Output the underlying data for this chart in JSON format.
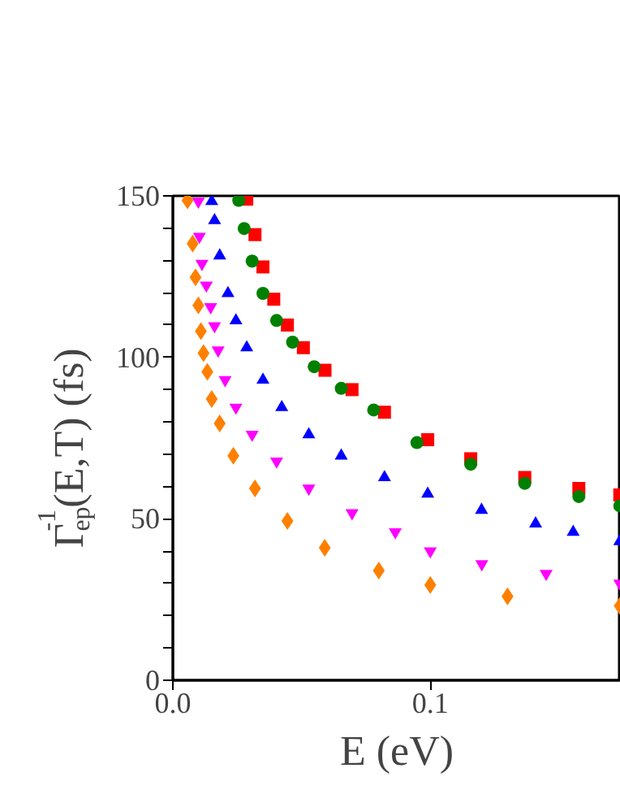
{
  "chart_data": {
    "type": "scatter",
    "xlabel": "E (eV)",
    "ylabel": "Γ$_{ep}$$^{-1}$(E,T) (fs)",
    "xlim": [
      0,
      0.174
    ],
    "ylim": [
      0,
      150
    ],
    "xticks": [
      {
        "value": 0,
        "label": "0.0"
      },
      0.1
    ],
    "yticks": [
      0,
      {
        "value": 10,
        "label": null
      },
      {
        "value": 20,
        "label": null
      },
      {
        "value": 30,
        "label": null
      },
      {
        "value": 40,
        "label": null
      },
      50,
      {
        "value": 60,
        "label": null
      },
      {
        "value": 70,
        "label": null
      },
      {
        "value": 80,
        "label": null
      },
      {
        "value": 90,
        "label": null
      },
      100,
      {
        "value": 110,
        "label": null
      },
      {
        "value": 120,
        "label": null
      },
      {
        "value": 130,
        "label": null
      },
      {
        "value": 140,
        "label": null
      },
      150
    ],
    "grid": false,
    "series": [
      {
        "color": "#ff0000",
        "marker": "square",
        "x": [
          0.0287,
          0.0319,
          0.035,
          0.0392,
          0.0445,
          0.0507,
          0.0591,
          0.0696,
          0.0822,
          0.099,
          0.1157,
          0.1367,
          0.1577,
          0.1736
        ],
        "values": [
          149,
          138,
          128,
          118,
          110,
          103,
          96,
          90,
          83,
          74.5,
          68.6,
          62.8,
          59.4,
          57.4
        ]
      },
      {
        "color": "#008000",
        "marker": "circle",
        "x": [
          0.0256,
          0.0277,
          0.0308,
          0.035,
          0.0403,
          0.0465,
          0.0549,
          0.0654,
          0.078,
          0.0948,
          0.1157,
          0.1367,
          0.1577,
          0.1736
        ],
        "values": [
          148.6,
          139.9,
          129.8,
          119.8,
          111.4,
          104.7,
          97.1,
          90.4,
          83.7,
          73.6,
          66.9,
          61.0,
          56.9,
          54.0
        ]
      },
      {
        "color": "#0000ff",
        "marker": "triangle",
        "x": [
          0.0151,
          0.0162,
          0.0182,
          0.0214,
          0.0245,
          0.0287,
          0.035,
          0.0423,
          0.0528,
          0.0654,
          0.0822,
          0.099,
          0.1199,
          0.1409,
          0.1555,
          0.1736
        ],
        "values": [
          148.3,
          142.4,
          131.5,
          119.8,
          111.4,
          103.0,
          93.0,
          84.5,
          76.1,
          69.5,
          62.8,
          57.7,
          52.7,
          48.5,
          45.9,
          43
        ]
      },
      {
        "color": "#ff00ff",
        "marker": "triangle",
        "x": [
          0.0099,
          0.0103,
          0.0113,
          0.013,
          0.0147,
          0.0162,
          0.0176,
          0.0203,
          0.0245,
          0.0308,
          0.0403,
          0.0528,
          0.0696,
          0.0864,
          0.1,
          0.12,
          0.145,
          0.1736
        ],
        "values": [
          148.3,
          137.4,
          129,
          122.3,
          115.6,
          109.7,
          102.2,
          93,
          84.5,
          76.1,
          67.8,
          59.4,
          51.8,
          45.9,
          40,
          36,
          33,
          30
        ]
      },
      {
        "color": "#ff8000",
        "marker": "diamond",
        "x": [
          0.0057,
          0.0077,
          0.0088,
          0.0099,
          0.0109,
          0.0119,
          0.0134,
          0.0151,
          0.0182,
          0.0235,
          0.0319,
          0.0445,
          0.059,
          0.08,
          0.1,
          0.13,
          0.1736
        ],
        "values": [
          148.6,
          135.2,
          124.8,
          116.1,
          108.1,
          101.3,
          95.5,
          87.1,
          79.5,
          69.5,
          59.4,
          49.3,
          41,
          34,
          29.5,
          26,
          23
        ]
      }
    ]
  }
}
